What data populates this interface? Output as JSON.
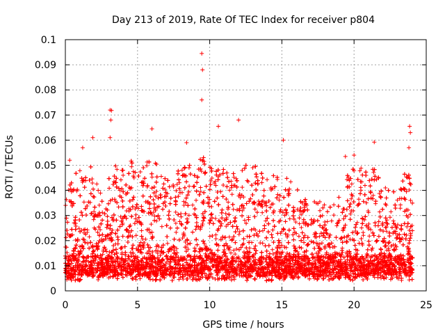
{
  "chart_data": {
    "type": "scatter",
    "title": "Day 213 of 2019, Rate Of TEC Index for receiver p804",
    "xlabel": "GPS time / hours",
    "ylabel": "ROTI / TECUs",
    "xlim": [
      0,
      25
    ],
    "ylim": [
      0,
      0.1
    ],
    "x_ticks": [
      0,
      5,
      10,
      15,
      20,
      25
    ],
    "x_tick_labels": [
      "0",
      "5",
      "10",
      "15",
      "20",
      "25"
    ],
    "y_ticks": [
      0,
      0.01,
      0.02,
      0.03,
      0.04,
      0.05,
      0.06,
      0.07,
      0.08,
      0.09,
      0.1
    ],
    "y_tick_labels": [
      "0",
      "0.01",
      "0.02",
      "0.03",
      "0.04",
      "0.05",
      "0.06",
      "0.07",
      "0.08",
      "0.09",
      "0.1"
    ],
    "grid": true,
    "marker": "+",
    "series": [
      {
        "name": "ROTI",
        "color": "#ff0000",
        "notable_points": [
          {
            "x": 9.45,
            "y": 0.0945
          },
          {
            "x": 9.5,
            "y": 0.088
          },
          {
            "x": 9.45,
            "y": 0.076
          },
          {
            "x": 3.1,
            "y": 0.072
          },
          {
            "x": 3.2,
            "y": 0.0718
          },
          {
            "x": 3.15,
            "y": 0.068
          },
          {
            "x": 12.0,
            "y": 0.068
          },
          {
            "x": 6.0,
            "y": 0.0645
          },
          {
            "x": 10.6,
            "y": 0.0655
          },
          {
            "x": 23.85,
            "y": 0.0655
          },
          {
            "x": 23.9,
            "y": 0.063
          },
          {
            "x": 1.9,
            "y": 0.061
          },
          {
            "x": 3.1,
            "y": 0.061
          },
          {
            "x": 15.1,
            "y": 0.06
          },
          {
            "x": 21.4,
            "y": 0.0592
          },
          {
            "x": 8.4,
            "y": 0.059
          },
          {
            "x": 1.2,
            "y": 0.057
          },
          {
            "x": 23.8,
            "y": 0.057
          },
          {
            "x": 20.0,
            "y": 0.054
          },
          {
            "x": 19.4,
            "y": 0.0535
          },
          {
            "x": 0.3,
            "y": 0.052
          }
        ],
        "envelope": {
          "description": "approximate upper bound of the dense ROTI cloud vs hour",
          "x": [
            0,
            0.5,
            1,
            1.5,
            2,
            2.5,
            3,
            3.5,
            4,
            4.5,
            5,
            5.5,
            6,
            6.5,
            7,
            7.5,
            8,
            8.5,
            9,
            9.5,
            10,
            10.5,
            11,
            11.5,
            12,
            12.5,
            13,
            13.5,
            14,
            14.5,
            15,
            15.5,
            16,
            16.5,
            17,
            17.5,
            18,
            18.5,
            19,
            19.5,
            20,
            20.5,
            21,
            21.5,
            22,
            22.5,
            23,
            23.5,
            24
          ],
          "y": [
            0.038,
            0.046,
            0.05,
            0.044,
            0.055,
            0.04,
            0.045,
            0.05,
            0.052,
            0.054,
            0.05,
            0.05,
            0.058,
            0.05,
            0.045,
            0.046,
            0.05,
            0.052,
            0.05,
            0.055,
            0.05,
            0.052,
            0.05,
            0.05,
            0.05,
            0.05,
            0.052,
            0.05,
            0.045,
            0.046,
            0.05,
            0.046,
            0.042,
            0.038,
            0.036,
            0.036,
            0.034,
            0.034,
            0.038,
            0.046,
            0.05,
            0.05,
            0.046,
            0.05,
            0.042,
            0.04,
            0.04,
            0.048,
            0.046
          ]
        }
      }
    ]
  }
}
